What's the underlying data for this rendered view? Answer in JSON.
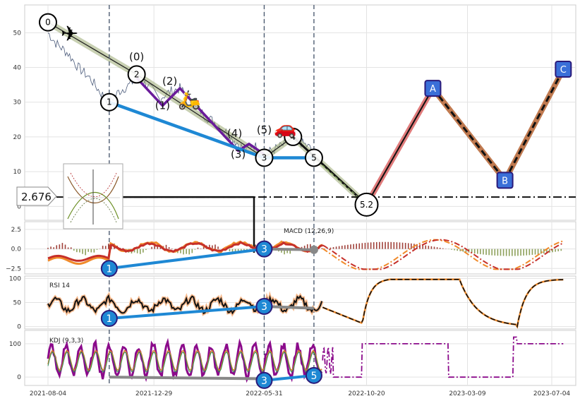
{
  "chart_data": {
    "type": "line",
    "x_ticks": [
      "2021-08-04",
      "2021-12-29",
      "2022-05-31",
      "2022-10-20",
      "2023-03-09",
      "2023-07-04"
    ],
    "price_panel": {
      "y_ticks": [
        0,
        10,
        20,
        30,
        40,
        50
      ],
      "ylim": [
        -4,
        58
      ],
      "price_line": {
        "value": 2.676,
        "label": "2.676"
      },
      "price_series": [
        [
          "2021-08-04",
          50
        ],
        [
          "2021-08-15",
          47
        ],
        [
          "2021-09-01",
          44
        ],
        [
          "2021-09-15",
          40
        ],
        [
          "2021-10-01",
          37
        ],
        [
          "2021-10-15",
          33
        ],
        [
          "2021-10-28",
          30
        ],
        [
          "2021-11-10",
          33
        ],
        [
          "2021-11-25",
          35
        ],
        [
          "2021-12-05",
          37
        ],
        [
          "2021-12-20",
          35
        ],
        [
          "2022-01-05",
          31
        ],
        [
          "2022-01-20",
          33
        ],
        [
          "2022-02-03",
          34
        ],
        [
          "2022-02-20",
          30
        ],
        [
          "2022-03-10",
          26
        ],
        [
          "2022-03-25",
          24
        ],
        [
          "2022-04-10",
          21
        ],
        [
          "2022-04-25",
          18
        ],
        [
          "2022-05-05",
          16
        ],
        [
          "2022-05-15",
          18
        ],
        [
          "2022-05-31",
          15
        ],
        [
          "2022-06-20",
          17
        ],
        [
          "2022-07-10",
          19
        ],
        [
          "2022-07-25",
          18
        ],
        [
          "2022-08-08",
          16
        ]
      ],
      "wave_points": [
        {
          "label": "0",
          "date": "2021-08-04",
          "value": 53
        },
        {
          "label": "1",
          "date": "2021-10-28",
          "value": 30
        },
        {
          "label": "2",
          "date": "2021-12-05",
          "value": 38
        },
        {
          "label": "3",
          "date": "2022-05-31",
          "value": 14
        },
        {
          "label": "4",
          "date": "2022-07-10",
          "value": 20
        },
        {
          "label": "5",
          "date": "2022-08-08",
          "value": 14
        },
        {
          "label": "5.2",
          "date": "2022-10-20",
          "value": 0.5
        }
      ],
      "sub_wave_labels": [
        {
          "label": "(0)",
          "date": "2021-12-05",
          "value": 42
        },
        {
          "label": "(1)",
          "date": "2022-01-10",
          "value": 28
        },
        {
          "label": "(2)",
          "date": "2022-01-20",
          "value": 35
        },
        {
          "label": "(3)",
          "date": "2022-04-25",
          "value": 14
        },
        {
          "label": "(4)",
          "date": "2022-04-20",
          "value": 20
        },
        {
          "label": "(5)",
          "date": "2022-05-31",
          "value": 21
        }
      ],
      "abc_points": [
        {
          "label": "A",
          "date": "2023-01-20",
          "value": 34
        },
        {
          "label": "B",
          "date": "2023-04-30",
          "value": 7.5
        },
        {
          "label": "C",
          "date": "2023-07-20",
          "value": 39.5
        }
      ]
    },
    "macd_panel": {
      "title": "MACD (12,26,9)",
      "y_ticks": [
        -2.5,
        0.0,
        2.5
      ],
      "ylim": [
        -3.2,
        3.5
      ],
      "markers": [
        {
          "label": "1",
          "date": "2021-10-28",
          "value": -2.5
        },
        {
          "label": "3",
          "date": "2022-05-31",
          "value": 0.0
        }
      ]
    },
    "rsi_panel": {
      "title": "RSI 14",
      "y_ticks": [
        0,
        50,
        100
      ],
      "ylim": [
        -5,
        105
      ],
      "markers": [
        {
          "label": "1",
          "date": "2021-10-28",
          "value": 17
        },
        {
          "label": "3",
          "date": "2022-05-31",
          "value": 42
        }
      ]
    },
    "kdj_panel": {
      "title": "KDJ (9,3,3)",
      "y_ticks": [
        0,
        100
      ],
      "ylim": [
        -25,
        140
      ],
      "markers": [
        {
          "label": "3",
          "date": "2022-05-31",
          "value": -10
        },
        {
          "label": "5",
          "date": "2022-08-08",
          "value": 5
        }
      ]
    },
    "vertical_markers": [
      "2021-10-28",
      "2022-05-31",
      "2022-08-08"
    ],
    "emojis": [
      "airplane",
      "scooter",
      "car"
    ]
  }
}
